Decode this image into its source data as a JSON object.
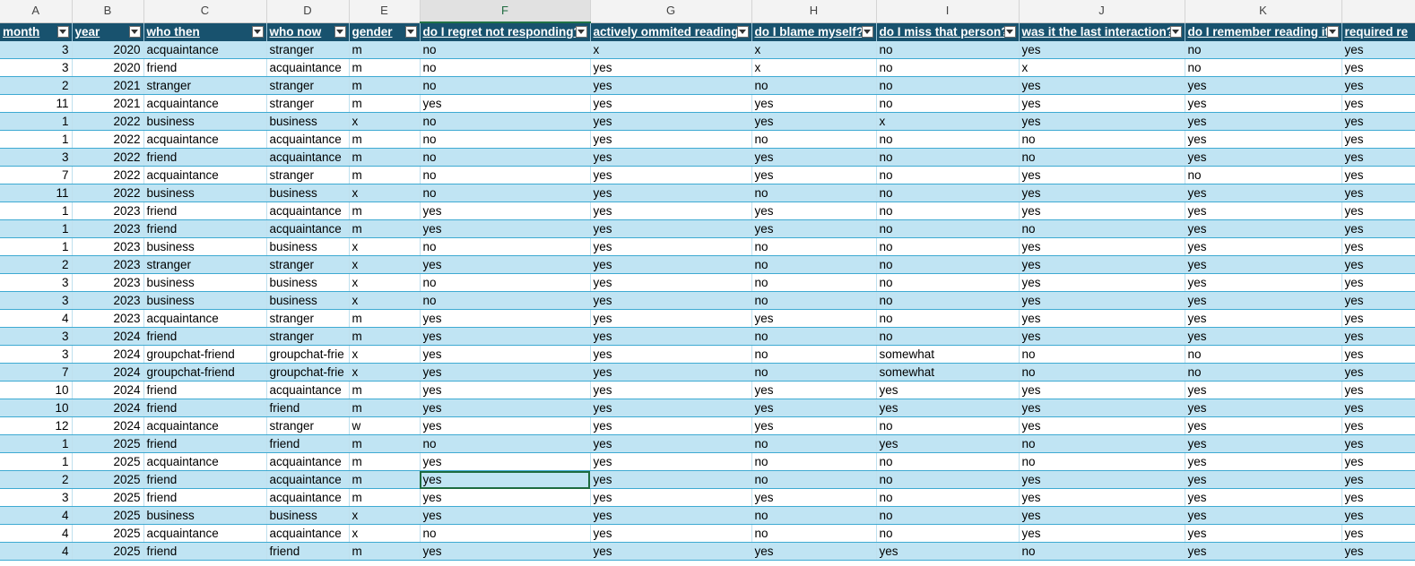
{
  "column_letters": [
    "A",
    "B",
    "C",
    "D",
    "E",
    "F",
    "G",
    "H",
    "I",
    "J",
    "K",
    ""
  ],
  "selected_column_letter": "F",
  "headers": [
    "month",
    "year",
    "who then",
    "who now",
    "gender",
    "do I regret not responding?",
    "actively ommited reading",
    "do I blame myself?",
    "do I miss that person?",
    "was it the last interaction?",
    "do I remember reading it",
    "required re"
  ],
  "rows": [
    [
      "3",
      "2020",
      "acquaintance",
      "stranger",
      "m",
      "no",
      "x",
      "x",
      "no",
      "yes",
      "no",
      "yes"
    ],
    [
      "3",
      "2020",
      "friend",
      "acquaintance",
      "m",
      "no",
      "yes",
      "x",
      "no",
      "x",
      "no",
      "yes"
    ],
    [
      "2",
      "2021",
      "stranger",
      "stranger",
      "m",
      "no",
      "yes",
      "no",
      "no",
      "yes",
      "yes",
      "yes"
    ],
    [
      "11",
      "2021",
      "acquaintance",
      "stranger",
      "m",
      "yes",
      "yes",
      "yes",
      "no",
      "yes",
      "yes",
      "yes"
    ],
    [
      "1",
      "2022",
      "business",
      "business",
      "x",
      "no",
      "yes",
      "yes",
      "x",
      "yes",
      "yes",
      "yes"
    ],
    [
      "1",
      "2022",
      "acquaintance",
      "acquaintance",
      "m",
      "no",
      "yes",
      "no",
      "no",
      "no",
      "yes",
      "yes"
    ],
    [
      "3",
      "2022",
      "friend",
      "acquaintance",
      "m",
      "no",
      "yes",
      "yes",
      "no",
      "no",
      "yes",
      "yes"
    ],
    [
      "7",
      "2022",
      "acquaintance",
      "stranger",
      "m",
      "no",
      "yes",
      "yes",
      "no",
      "yes",
      "no",
      "yes"
    ],
    [
      "11",
      "2022",
      "business",
      "business",
      "x",
      "no",
      "yes",
      "no",
      "no",
      "yes",
      "yes",
      "yes"
    ],
    [
      "1",
      "2023",
      "friend",
      "acquaintance",
      "m",
      "yes",
      "yes",
      "yes",
      "no",
      "yes",
      "yes",
      "yes"
    ],
    [
      "1",
      "2023",
      "friend",
      "acquaintance",
      "m",
      "yes",
      "yes",
      "yes",
      "no",
      "no",
      "yes",
      "yes"
    ],
    [
      "1",
      "2023",
      "business",
      "business",
      "x",
      "no",
      "yes",
      "no",
      "no",
      "yes",
      "yes",
      "yes"
    ],
    [
      "2",
      "2023",
      "stranger",
      "stranger",
      "x",
      "yes",
      "yes",
      "no",
      "no",
      "yes",
      "yes",
      "yes"
    ],
    [
      "3",
      "2023",
      "business",
      "business",
      "x",
      "no",
      "yes",
      "no",
      "no",
      "yes",
      "yes",
      "yes"
    ],
    [
      "3",
      "2023",
      "business",
      "business",
      "x",
      "no",
      "yes",
      "no",
      "no",
      "yes",
      "yes",
      "yes"
    ],
    [
      "4",
      "2023",
      "acquaintance",
      "stranger",
      "m",
      "yes",
      "yes",
      "yes",
      "no",
      "yes",
      "yes",
      "yes"
    ],
    [
      "3",
      "2024",
      "friend",
      "stranger",
      "m",
      "yes",
      "yes",
      "no",
      "no",
      "yes",
      "yes",
      "yes"
    ],
    [
      "3",
      "2024",
      "groupchat-friend",
      "groupchat-frie",
      "x",
      "yes",
      "yes",
      "no",
      "somewhat",
      "no",
      "no",
      "yes"
    ],
    [
      "7",
      "2024",
      "groupchat-friend",
      "groupchat-frie",
      "x",
      "yes",
      "yes",
      "no",
      "somewhat",
      "no",
      "no",
      "yes"
    ],
    [
      "10",
      "2024",
      "friend",
      "acquaintance",
      "m",
      "yes",
      "yes",
      "yes",
      "yes",
      "yes",
      "yes",
      "yes"
    ],
    [
      "10",
      "2024",
      "friend",
      "friend",
      "m",
      "yes",
      "yes",
      "yes",
      "yes",
      "yes",
      "yes",
      "yes"
    ],
    [
      "12",
      "2024",
      "acquaintance",
      "stranger",
      "w",
      "yes",
      "yes",
      "yes",
      "no",
      "yes",
      "yes",
      "yes"
    ],
    [
      "1",
      "2025",
      "friend",
      "friend",
      "m",
      "no",
      "yes",
      "no",
      "yes",
      "no",
      "yes",
      "yes"
    ],
    [
      "1",
      "2025",
      "acquaintance",
      "acquaintance",
      "m",
      "yes",
      "yes",
      "no",
      "no",
      "no",
      "yes",
      "yes"
    ],
    [
      "2",
      "2025",
      "friend",
      "acquaintance",
      "m",
      "yes",
      "yes",
      "no",
      "no",
      "yes",
      "yes",
      "yes"
    ],
    [
      "3",
      "2025",
      "friend",
      "acquaintance",
      "m",
      "yes",
      "yes",
      "yes",
      "no",
      "yes",
      "yes",
      "yes"
    ],
    [
      "4",
      "2025",
      "business",
      "business",
      "x",
      "yes",
      "yes",
      "no",
      "no",
      "yes",
      "yes",
      "yes"
    ],
    [
      "4",
      "2025",
      "acquaintance",
      "acquaintance",
      "x",
      "no",
      "yes",
      "no",
      "no",
      "yes",
      "yes",
      "yes"
    ],
    [
      "4",
      "2025",
      "friend",
      "friend",
      "m",
      "yes",
      "yes",
      "yes",
      "yes",
      "no",
      "yes",
      "yes"
    ]
  ],
  "selected_cell": {
    "row": 24,
    "col": 5
  },
  "colors": {
    "header_bg": "#18526e",
    "band_bg": "#c0e4f3",
    "selection": "#1e6b3f"
  }
}
